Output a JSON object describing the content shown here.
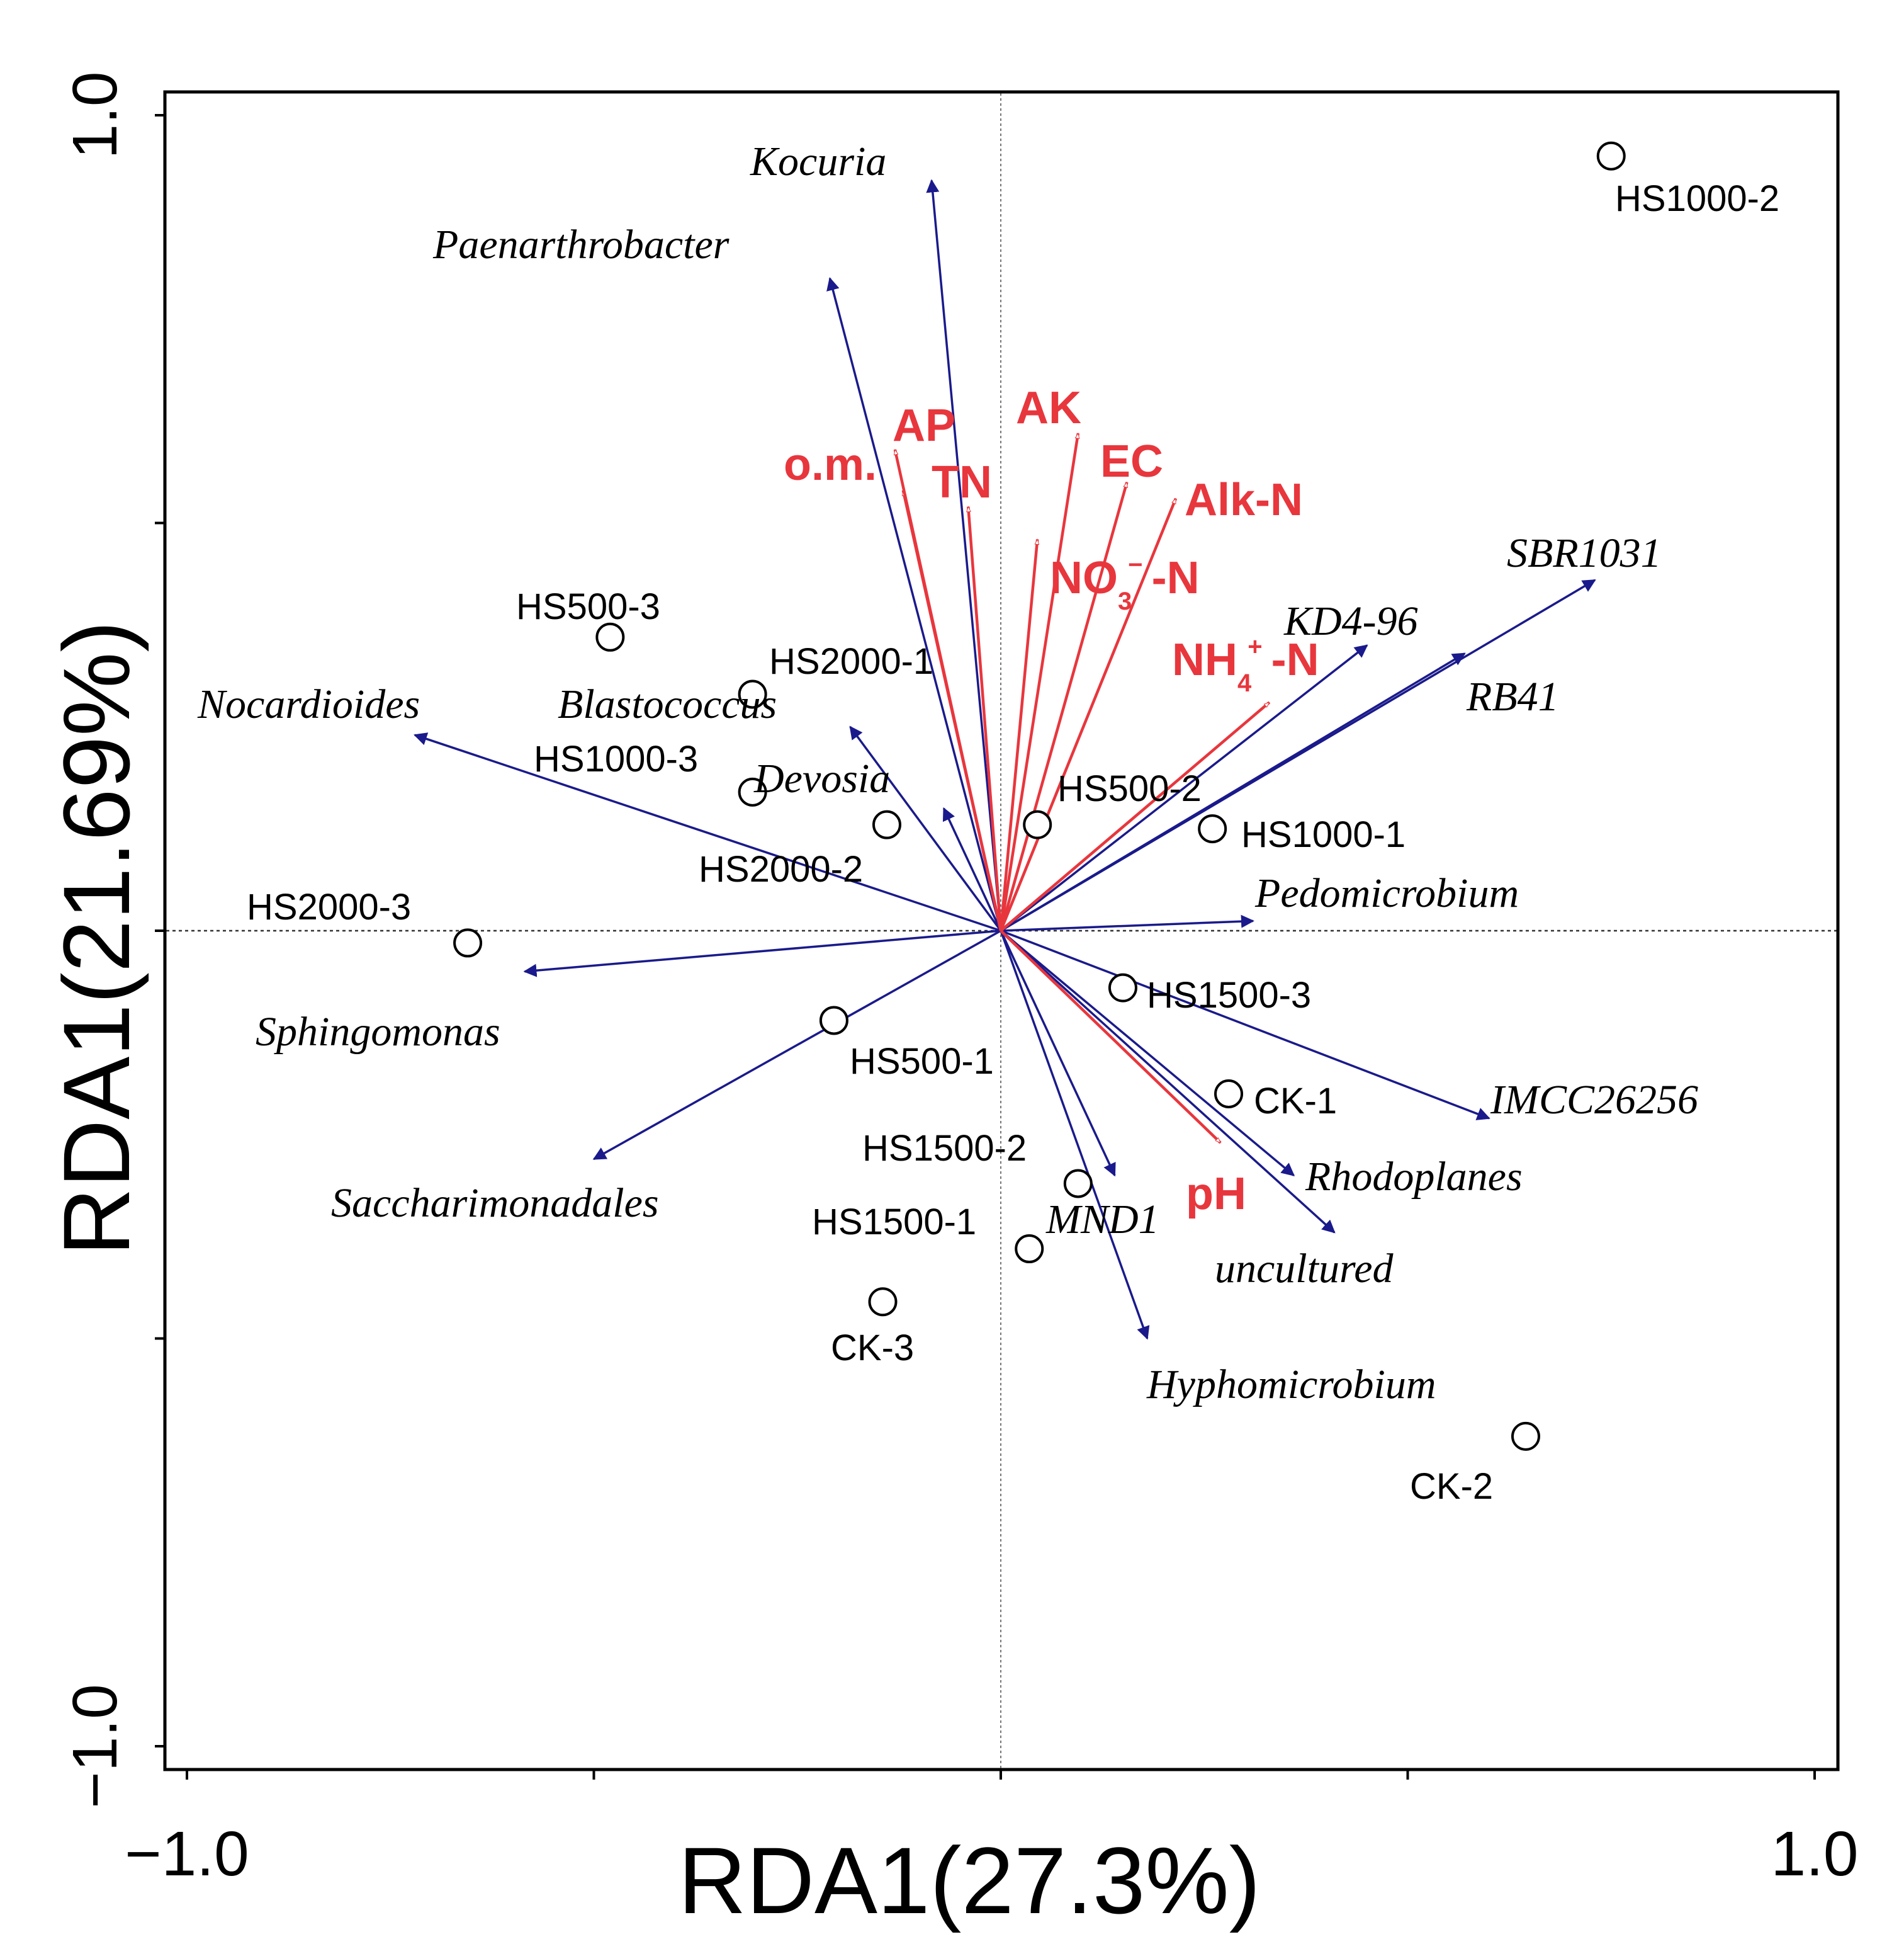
{
  "chart_data": {
    "type": "scatter",
    "title": "",
    "xlabel": "RDA1(27.3%)",
    "ylabel": "RDA1(21.69%)",
    "xlim": [
      -1.0,
      1.0
    ],
    "ylim": [
      -1.0,
      1.0
    ],
    "x_tick_labels": [
      {
        "value": -1.0,
        "label": "−1.0"
      },
      {
        "value": 1.0,
        "label": "1.0"
      }
    ],
    "y_tick_labels": [
      {
        "value": 1.0,
        "label": "1.0"
      },
      {
        "value": -1.0,
        "label": "−1.0"
      }
    ],
    "x_ticks": [
      -1.0,
      -0.5,
      0.0,
      0.5,
      1.0
    ],
    "y_ticks": [
      -1.0,
      -0.5,
      0.0,
      0.5,
      1.0
    ],
    "grid": false,
    "reference_lines": [
      0.0
    ],
    "colors": {
      "species_arrow": "#1a1a8c",
      "env_arrow": "#e8363d",
      "sample_marker": "#000000"
    },
    "samples": [
      {
        "name": "HS1000-2",
        "x": 0.75,
        "y": 0.95
      },
      {
        "name": "HS500-3",
        "x": -0.48,
        "y": 0.36
      },
      {
        "name": "HS2000-1",
        "x": -0.305,
        "y": 0.29
      },
      {
        "name": "HS1000-3",
        "x": -0.305,
        "y": 0.17
      },
      {
        "name": "HS2000-2",
        "x": -0.14,
        "y": 0.13
      },
      {
        "name": "HS500-2",
        "x": 0.045,
        "y": 0.13
      },
      {
        "name": "HS1000-1",
        "x": 0.26,
        "y": 0.125
      },
      {
        "name": "HS2000-3",
        "x": -0.655,
        "y": -0.015
      },
      {
        "name": "HS1500-3",
        "x": 0.15,
        "y": -0.07
      },
      {
        "name": "HS500-1",
        "x": -0.205,
        "y": -0.11
      },
      {
        "name": "CK-1",
        "x": 0.28,
        "y": -0.2
      },
      {
        "name": "HS1500-2",
        "x": 0.095,
        "y": -0.31
      },
      {
        "name": "HS1500-1",
        "x": 0.035,
        "y": -0.39
      },
      {
        "name": "CK-3",
        "x": -0.145,
        "y": -0.455
      },
      {
        "name": "CK-2",
        "x": 0.645,
        "y": -0.62
      }
    ],
    "species": [
      {
        "name": "Kocuria",
        "x": -0.085,
        "y": 0.92
      },
      {
        "name": "Paenarthrobacter",
        "x": -0.21,
        "y": 0.8
      },
      {
        "name": "SBR1031",
        "x": 0.73,
        "y": 0.43
      },
      {
        "name": "KD4-96",
        "x": 0.45,
        "y": 0.35
      },
      {
        "name": "RB41",
        "x": 0.57,
        "y": 0.34
      },
      {
        "name": "Nocardioides",
        "x": -0.72,
        "y": 0.24
      },
      {
        "name": "Blastococcus",
        "x": -0.185,
        "y": 0.25
      },
      {
        "name": "Devosia",
        "x": -0.07,
        "y": 0.15
      },
      {
        "name": "Pedomicrobium",
        "x": 0.31,
        "y": 0.012
      },
      {
        "name": "Sphingomonas",
        "x": -0.585,
        "y": -0.05
      },
      {
        "name": "IMCC26256",
        "x": 0.6,
        "y": -0.23
      },
      {
        "name": "Rhodoplanes",
        "x": 0.36,
        "y": -0.3
      },
      {
        "name": "uncultured",
        "x": 0.41,
        "y": -0.37
      },
      {
        "name": "Saccharimonadales",
        "x": -0.5,
        "y": -0.28
      },
      {
        "name": "MND1",
        "x": 0.14,
        "y": -0.3
      },
      {
        "name": "Hyphomicrobium",
        "x": 0.18,
        "y": -0.5
      }
    ],
    "environmental_factors": [
      {
        "name": "AP",
        "x": -0.12,
        "y": 0.54
      },
      {
        "name": "o.m.",
        "x": -0.13,
        "y": 0.59
      },
      {
        "name": "TN",
        "x": -0.04,
        "y": 0.52
      },
      {
        "name": "AK",
        "x": 0.095,
        "y": 0.61
      },
      {
        "name": "EC",
        "x": 0.155,
        "y": 0.55
      },
      {
        "name": "Alk-N",
        "x": 0.215,
        "y": 0.53
      },
      {
        "name": "NO3- -N",
        "label_main": "NO",
        "label_sub": "3",
        "label_sup": "−",
        "label_tail": "-N",
        "x": 0.045,
        "y": 0.48
      },
      {
        "name": "NH4+ -N",
        "label_main": "NH",
        "label_sub": "4",
        "label_sup": "+",
        "label_tail": "-N",
        "x": 0.33,
        "y": 0.28
      },
      {
        "name": "pH",
        "x": 0.27,
        "y": -0.26
      }
    ]
  }
}
